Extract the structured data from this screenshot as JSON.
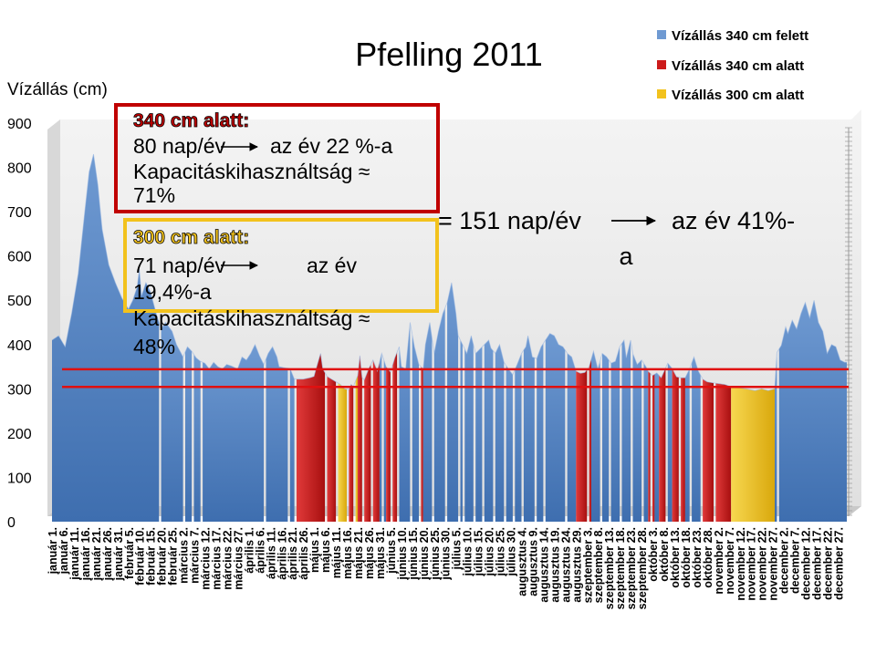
{
  "chart_data": {
    "type": "area",
    "title": "Pfelling 2011",
    "ylabel": "Vízállás (cm)",
    "xlabel": "",
    "ylim": [
      0,
      900
    ],
    "yticks": [
      0,
      100,
      200,
      300,
      400,
      500,
      600,
      700,
      800,
      900
    ],
    "grid": false,
    "legend_position": "top-right",
    "colors": {
      "above": "#6F9AD2",
      "below340": "#CC1B1B",
      "below300": "#F2C21D",
      "frame_red": "#C00000",
      "frame_yellow": "#F2C21D"
    },
    "series": [
      {
        "name": "Vízállás 340 cm felett",
        "color": "#6F9AD2"
      },
      {
        "name": "Vízállás 340 cm alatt",
        "color": "#CC1B1B"
      },
      {
        "name": "Vízállás 300 cm alatt",
        "color": "#F2C21D"
      }
    ],
    "x_ticks": [
      "január 1.",
      "január 6.",
      "január 11.",
      "január 16.",
      "január 21.",
      "január 26.",
      "január 31.",
      "február 5.",
      "február 10.",
      "február 15.",
      "február 20.",
      "február 25.",
      "március 2.",
      "március 7.",
      "március 12.",
      "március 17.",
      "március 22.",
      "március 27.",
      "április 1.",
      "április 6.",
      "április 11.",
      "április 16.",
      "április 21.",
      "április 26.",
      "május 1.",
      "május 6.",
      "május 11.",
      "május 16.",
      "május 21.",
      "május 26.",
      "május 31.",
      "június 5.",
      "június 10.",
      "június 15.",
      "június 20.",
      "június 25.",
      "június 30.",
      "július 5.",
      "július 10.",
      "július 15.",
      "július 20.",
      "július 25.",
      "július 30.",
      "augusztus 4.",
      "augusztus 9.",
      "augusztus 14.",
      "augusztus 19.",
      "augusztus 24.",
      "augusztus 29.",
      "szeptember 3.",
      "szeptember 8.",
      "szeptember 13.",
      "szeptember 18.",
      "szeptember 23.",
      "szeptember 28.",
      "október 3.",
      "október 8.",
      "október 13.",
      "október 18.",
      "október 23.",
      "október 28.",
      "november 2.",
      "november 7.",
      "november 12.",
      "november 17.",
      "november 22.",
      "november 27.",
      "december 2.",
      "december 7.",
      "december 12.",
      "december 17.",
      "december 22.",
      "december 27."
    ],
    "x_day_index": [
      0,
      5,
      10,
      15,
      20,
      25,
      30,
      35,
      40,
      45,
      50,
      55,
      60,
      65,
      70,
      75,
      80,
      85,
      90,
      95,
      100,
      105,
      110,
      115,
      120,
      125,
      130,
      135,
      140,
      145,
      150,
      155,
      160,
      165,
      170,
      175,
      180,
      185,
      190,
      195,
      200,
      205,
      210,
      215,
      220,
      225,
      230,
      235,
      240,
      245,
      250,
      255,
      260,
      265,
      270,
      275,
      280,
      285,
      290,
      295,
      300,
      305,
      310,
      315,
      320,
      325,
      330,
      335,
      340,
      345,
      350,
      355,
      360
    ],
    "profile_day_value": [
      [
        0,
        410
      ],
      [
        3,
        420
      ],
      [
        6,
        395
      ],
      [
        9,
        470
      ],
      [
        12,
        560
      ],
      [
        15,
        700
      ],
      [
        17,
        790
      ],
      [
        19,
        830
      ],
      [
        21,
        760
      ],
      [
        23,
        660
      ],
      [
        26,
        580
      ],
      [
        29,
        540
      ],
      [
        32,
        505
      ],
      [
        35,
        480
      ],
      [
        37,
        500
      ],
      [
        39,
        530
      ],
      [
        40,
        570
      ],
      [
        41,
        510
      ],
      [
        43,
        540
      ],
      [
        45,
        520
      ],
      [
        48,
        465
      ],
      [
        50,
        435
      ],
      [
        52,
        450
      ],
      [
        55,
        430
      ],
      [
        57,
        400
      ],
      [
        60,
        372
      ],
      [
        62,
        395
      ],
      [
        64,
        385
      ],
      [
        66,
        370
      ],
      [
        68,
        362
      ],
      [
        70,
        358
      ],
      [
        72,
        345
      ],
      [
        74,
        360
      ],
      [
        76,
        350
      ],
      [
        78,
        345
      ],
      [
        80,
        355
      ],
      [
        82,
        352
      ],
      [
        85,
        345
      ],
      [
        87,
        372
      ],
      [
        89,
        365
      ],
      [
        91,
        380
      ],
      [
        93,
        400
      ],
      [
        95,
        375
      ],
      [
        97,
        355
      ],
      [
        99,
        380
      ],
      [
        101,
        395
      ],
      [
        103,
        372
      ],
      [
        104,
        350
      ],
      [
        106,
        348
      ],
      [
        109,
        346
      ],
      [
        111,
        322
      ],
      [
        115,
        322
      ],
      [
        118,
        325
      ],
      [
        120,
        328
      ],
      [
        121,
        346
      ],
      [
        123,
        380
      ],
      [
        124,
        345
      ],
      [
        126,
        328
      ],
      [
        128,
        322
      ],
      [
        130,
        316
      ],
      [
        132,
        310
      ],
      [
        134,
        300
      ],
      [
        136,
        298
      ],
      [
        137,
        310
      ],
      [
        138,
        305
      ],
      [
        140,
        330
      ],
      [
        141,
        375
      ],
      [
        142,
        325
      ],
      [
        143,
        320
      ],
      [
        145,
        345
      ],
      [
        147,
        365
      ],
      [
        149,
        340
      ],
      [
        151,
        380
      ],
      [
        153,
        350
      ],
      [
        155,
        338
      ],
      [
        157,
        370
      ],
      [
        159,
        395
      ],
      [
        160,
        350
      ],
      [
        162,
        345
      ],
      [
        164,
        450
      ],
      [
        166,
        395
      ],
      [
        168,
        355
      ],
      [
        170,
        345
      ],
      [
        171,
        400
      ],
      [
        173,
        450
      ],
      [
        175,
        380
      ],
      [
        177,
        430
      ],
      [
        179,
        470
      ],
      [
        181,
        495
      ],
      [
        183,
        540
      ],
      [
        185,
        470
      ],
      [
        186,
        420
      ],
      [
        188,
        400
      ],
      [
        190,
        380
      ],
      [
        192,
        420
      ],
      [
        194,
        380
      ],
      [
        196,
        390
      ],
      [
        198,
        400
      ],
      [
        200,
        410
      ],
      [
        201,
        392
      ],
      [
        203,
        380
      ],
      [
        205,
        400
      ],
      [
        207,
        360
      ],
      [
        209,
        345
      ],
      [
        211,
        332
      ],
      [
        213,
        355
      ],
      [
        215,
        380
      ],
      [
        217,
        395
      ],
      [
        218,
        420
      ],
      [
        220,
        372
      ],
      [
        222,
        368
      ],
      [
        224,
        395
      ],
      [
        226,
        410
      ],
      [
        228,
        425
      ],
      [
        230,
        420
      ],
      [
        232,
        400
      ],
      [
        234,
        395
      ],
      [
        236,
        380
      ],
      [
        238,
        372
      ],
      [
        240,
        340
      ],
      [
        242,
        335
      ],
      [
        244,
        337
      ],
      [
        246,
        350
      ],
      [
        248,
        385
      ],
      [
        250,
        345
      ],
      [
        252,
        380
      ],
      [
        254,
        372
      ],
      [
        256,
        358
      ],
      [
        258,
        362
      ],
      [
        260,
        395
      ],
      [
        262,
        410
      ],
      [
        263,
        370
      ],
      [
        265,
        410
      ],
      [
        266,
        380
      ],
      [
        268,
        355
      ],
      [
        270,
        365
      ],
      [
        272,
        350
      ],
      [
        273,
        340
      ],
      [
        275,
        330
      ],
      [
        277,
        336
      ],
      [
        279,
        325
      ],
      [
        280,
        336
      ],
      [
        282,
        358
      ],
      [
        284,
        346
      ],
      [
        286,
        327
      ],
      [
        288,
        325
      ],
      [
        290,
        325
      ],
      [
        292,
        345
      ],
      [
        294,
        372
      ],
      [
        296,
        340
      ],
      [
        298,
        322
      ],
      [
        300,
        316
      ],
      [
        302,
        314
      ],
      [
        305,
        312
      ],
      [
        308,
        310
      ],
      [
        311,
        305
      ],
      [
        314,
        303
      ],
      [
        318,
        300
      ],
      [
        322,
        296
      ],
      [
        325,
        300
      ],
      [
        328,
        296
      ],
      [
        331,
        300
      ],
      [
        332,
        382
      ],
      [
        334,
        398
      ],
      [
        336,
        440
      ],
      [
        337,
        425
      ],
      [
        339,
        455
      ],
      [
        341,
        435
      ],
      [
        343,
        470
      ],
      [
        345,
        495
      ],
      [
        347,
        460
      ],
      [
        349,
        500
      ],
      [
        351,
        450
      ],
      [
        353,
        430
      ],
      [
        355,
        380
      ],
      [
        357,
        400
      ],
      [
        359,
        395
      ],
      [
        361,
        365
      ],
      [
        363,
        360
      ],
      [
        364,
        360
      ]
    ],
    "gaps_days": [
      [
        49,
        50
      ],
      [
        60,
        61
      ],
      [
        64,
        65
      ],
      [
        68,
        69
      ],
      [
        97,
        98
      ],
      [
        108,
        109
      ],
      [
        111,
        112
      ],
      [
        125,
        126
      ],
      [
        130,
        131
      ],
      [
        135,
        136
      ],
      [
        138,
        139
      ],
      [
        142,
        143
      ],
      [
        146,
        147
      ],
      [
        151,
        152
      ],
      [
        155,
        156
      ],
      [
        158,
        159
      ],
      [
        164,
        165
      ],
      [
        168,
        169
      ],
      [
        174,
        175
      ],
      [
        180,
        181
      ],
      [
        186,
        187
      ],
      [
        188,
        189
      ],
      [
        193,
        194
      ],
      [
        197,
        198
      ],
      [
        202,
        203
      ],
      [
        207,
        208
      ],
      [
        211,
        212
      ],
      [
        215,
        216
      ],
      [
        221,
        222
      ],
      [
        225,
        226
      ],
      [
        235,
        236
      ],
      [
        245,
        246
      ],
      [
        251,
        252
      ],
      [
        255,
        256
      ],
      [
        260,
        261
      ],
      [
        265,
        266
      ],
      [
        270,
        271
      ],
      [
        274,
        275
      ],
      [
        281,
        282
      ],
      [
        287,
        288
      ],
      [
        292,
        293
      ],
      [
        297,
        298
      ],
      [
        303,
        304
      ],
      [
        332,
        333
      ]
    ],
    "below340_spans": [
      [
        111,
        125
      ],
      [
        126,
        130
      ],
      [
        136,
        138
      ],
      [
        140,
        142
      ],
      [
        143,
        146
      ],
      [
        147,
        150
      ],
      [
        153,
        155
      ],
      [
        156,
        158
      ],
      [
        168,
        170
      ],
      [
        240,
        247
      ],
      [
        273,
        276
      ],
      [
        278,
        281
      ],
      [
        284,
        290
      ],
      [
        297,
        303
      ],
      [
        304,
        311
      ]
    ],
    "below300_spans": [
      [
        130,
        136
      ],
      [
        138,
        140
      ],
      [
        311,
        331
      ]
    ],
    "threshold_lines": [
      340,
      300
    ],
    "annotations": {
      "box340_head": "340 cm alatt:",
      "box340_line1": "80 nap/év",
      "box340_line1b": "az év 22 %-a",
      "box340_line2": "Kapacitáskihasználtság ≈",
      "box340_line3": "71%",
      "box300_head": "300 cm alatt:",
      "box300_line1": "71 nap/év",
      "box300_line1b": "az év",
      "box300_line2": "19,4%-a",
      "box300_line3": "Kapacitáskihasználtság ≈",
      "box300_line4": "48%",
      "right_line1": "= 151 nap/év",
      "right_line1b": "az év 41%-",
      "right_line2": "a"
    }
  }
}
